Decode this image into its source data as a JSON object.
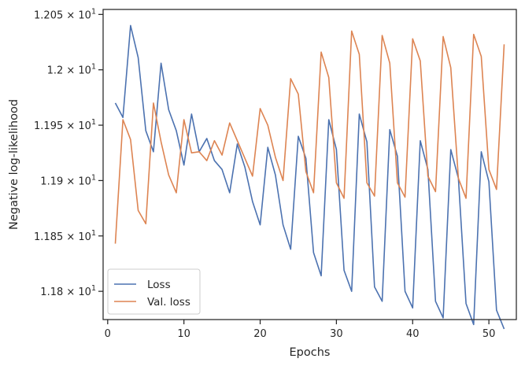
{
  "chart_data": {
    "type": "line",
    "xlabel": "Epochs",
    "ylabel": "Negative log-likelihood",
    "xlim": [
      -0.6,
      53.6
    ],
    "ylim": [
      11.7745,
      12.0545
    ],
    "x_ticks": [
      0,
      10,
      20,
      30,
      40,
      50
    ],
    "y_ticks": [
      {
        "value": 11.8,
        "mantissa": "1.18",
        "exp": "1"
      },
      {
        "value": 11.85,
        "mantissa": "1.185",
        "exp": "1"
      },
      {
        "value": 11.9,
        "mantissa": "1.19",
        "exp": "1"
      },
      {
        "value": 11.95,
        "mantissa": "1.195",
        "exp": "1"
      },
      {
        "value": 12.0,
        "mantissa": "1.2",
        "exp": "1"
      },
      {
        "value": 12.05,
        "mantissa": "1.205",
        "exp": "1"
      }
    ],
    "tick_times_symbol": "×",
    "tick_base": "10",
    "grid": false,
    "legend_position": "lower-left",
    "x": [
      1,
      2,
      3,
      4,
      5,
      6,
      7,
      8,
      9,
      10,
      11,
      12,
      13,
      14,
      15,
      16,
      17,
      18,
      19,
      20,
      21,
      22,
      23,
      24,
      25,
      26,
      27,
      28,
      29,
      30,
      31,
      32,
      33,
      34,
      35,
      36,
      37,
      38,
      39,
      40,
      41,
      42,
      43,
      44,
      45,
      46,
      47,
      48,
      49,
      50,
      51,
      52
    ],
    "series": [
      {
        "name": "Loss",
        "color": "#4c72b0",
        "values": [
          11.97,
          11.957,
          12.04,
          12.011,
          11.945,
          11.926,
          12.006,
          11.964,
          11.945,
          11.914,
          11.96,
          11.926,
          11.938,
          11.918,
          11.91,
          11.889,
          11.933,
          11.912,
          11.881,
          11.86,
          11.93,
          11.905,
          11.86,
          11.838,
          11.94,
          11.92,
          11.835,
          11.814,
          11.955,
          11.928,
          11.819,
          11.8,
          11.96,
          11.935,
          11.804,
          11.791,
          11.946,
          11.922,
          11.8,
          11.785,
          11.936,
          11.91,
          11.791,
          11.776,
          11.928,
          11.902,
          11.789,
          11.77,
          11.926,
          11.899,
          11.783,
          11.766
        ]
      },
      {
        "name": "Val. loss",
        "color": "#dd8452",
        "values": [
          11.843,
          11.955,
          11.937,
          11.873,
          11.861,
          11.97,
          11.935,
          11.905,
          11.889,
          11.955,
          11.925,
          11.926,
          11.918,
          11.936,
          11.923,
          11.952,
          11.936,
          11.92,
          11.904,
          11.965,
          11.95,
          11.921,
          11.9,
          11.992,
          11.978,
          11.908,
          11.889,
          12.016,
          11.993,
          11.898,
          11.884,
          12.035,
          12.014,
          11.898,
          11.886,
          12.031,
          12.006,
          11.898,
          11.885,
          12.028,
          12.008,
          11.904,
          11.89,
          12.03,
          12.002,
          11.902,
          11.884,
          12.032,
          12.012,
          11.91,
          11.892,
          12.023
        ]
      }
    ]
  }
}
